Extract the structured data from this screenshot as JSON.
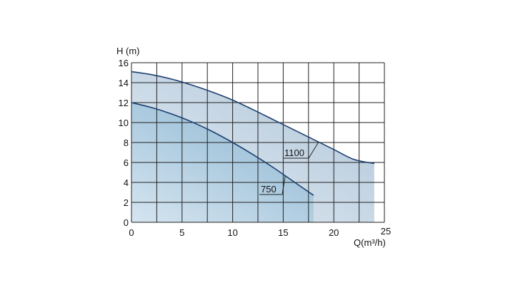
{
  "chart_data": {
    "type": "area",
    "title": "",
    "xlabel": "Q(m³/h)",
    "ylabel": "H (m)",
    "xlim": [
      0,
      25
    ],
    "ylim": [
      0,
      16
    ],
    "x_ticks": [
      0,
      5,
      10,
      15,
      20,
      25
    ],
    "y_ticks": [
      0,
      2,
      4,
      6,
      8,
      10,
      12,
      14,
      16
    ],
    "x_tick_labels": [
      "0",
      "5",
      "10",
      "15",
      "20",
      "25"
    ],
    "y_tick_labels": [
      "0",
      "2",
      "4",
      "6",
      "8",
      "10",
      "12",
      "14",
      "16"
    ],
    "grid": true,
    "legend": "none",
    "series": [
      {
        "name": "1100",
        "color": "#1c3f6e",
        "fill": "#a9c1d6",
        "x": [
          0,
          2,
          4,
          6,
          8,
          10,
          12,
          14,
          16,
          18,
          20,
          22,
          24
        ],
        "y": [
          15.1,
          14.8,
          14.35,
          13.75,
          13.05,
          12.25,
          11.3,
          10.3,
          9.3,
          8.3,
          7.3,
          6.3,
          5.9
        ]
      },
      {
        "name": "750",
        "color": "#1c3f6e",
        "fill": "#8fb8d4",
        "x": [
          0,
          2,
          4,
          6,
          8,
          10,
          12,
          14,
          16,
          18
        ],
        "y": [
          12.0,
          11.5,
          10.85,
          10.05,
          9.1,
          8.0,
          6.8,
          5.5,
          4.1,
          2.7
        ]
      }
    ]
  }
}
